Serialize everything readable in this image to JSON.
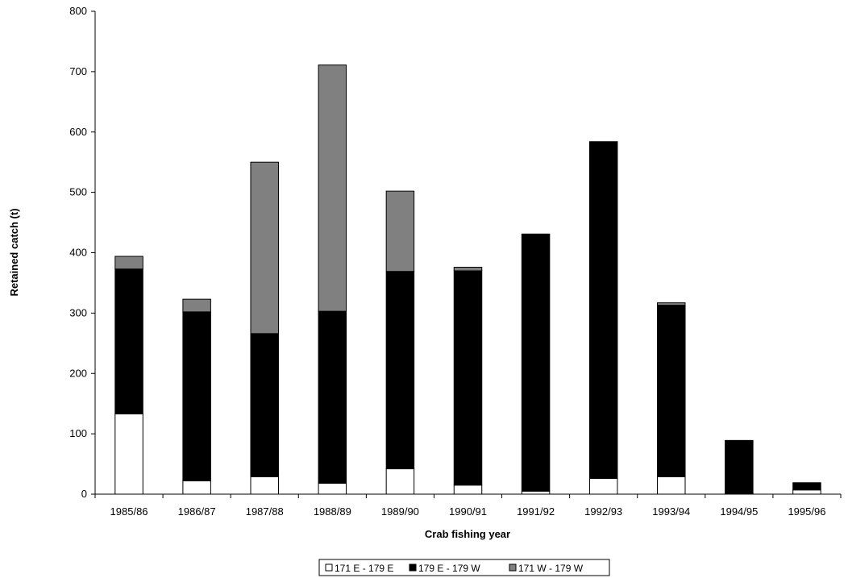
{
  "chart_data": {
    "type": "bar",
    "stacked": true,
    "categories": [
      "1985/86",
      "1986/87",
      "1987/88",
      "1988/89",
      "1989/90",
      "1990/91",
      "1991/92",
      "1992/93",
      "1993/94",
      "1994/95",
      "1995/96"
    ],
    "series": [
      {
        "name": "171 E - 179 E",
        "color": "#ffffff",
        "values": [
          133,
          22,
          29,
          18,
          42,
          15,
          5,
          26,
          29,
          1,
          7
        ]
      },
      {
        "name": "179 E - 179 W",
        "color": "#000000",
        "values": [
          240,
          280,
          237,
          285,
          327,
          355,
          426,
          558,
          284,
          88,
          12
        ]
      },
      {
        "name": "171 W - 179 W",
        "color": "#808080",
        "values": [
          21,
          21,
          284,
          408,
          133,
          6,
          0,
          0,
          4,
          0,
          0
        ]
      }
    ],
    "xlabel": "Crab fishing year",
    "ylabel": "Retained catch (t)",
    "ylim": [
      0,
      800
    ],
    "yticks": [
      0,
      100,
      200,
      300,
      400,
      500,
      600,
      700,
      800
    ],
    "grid": false,
    "legend_position": "bottom"
  }
}
